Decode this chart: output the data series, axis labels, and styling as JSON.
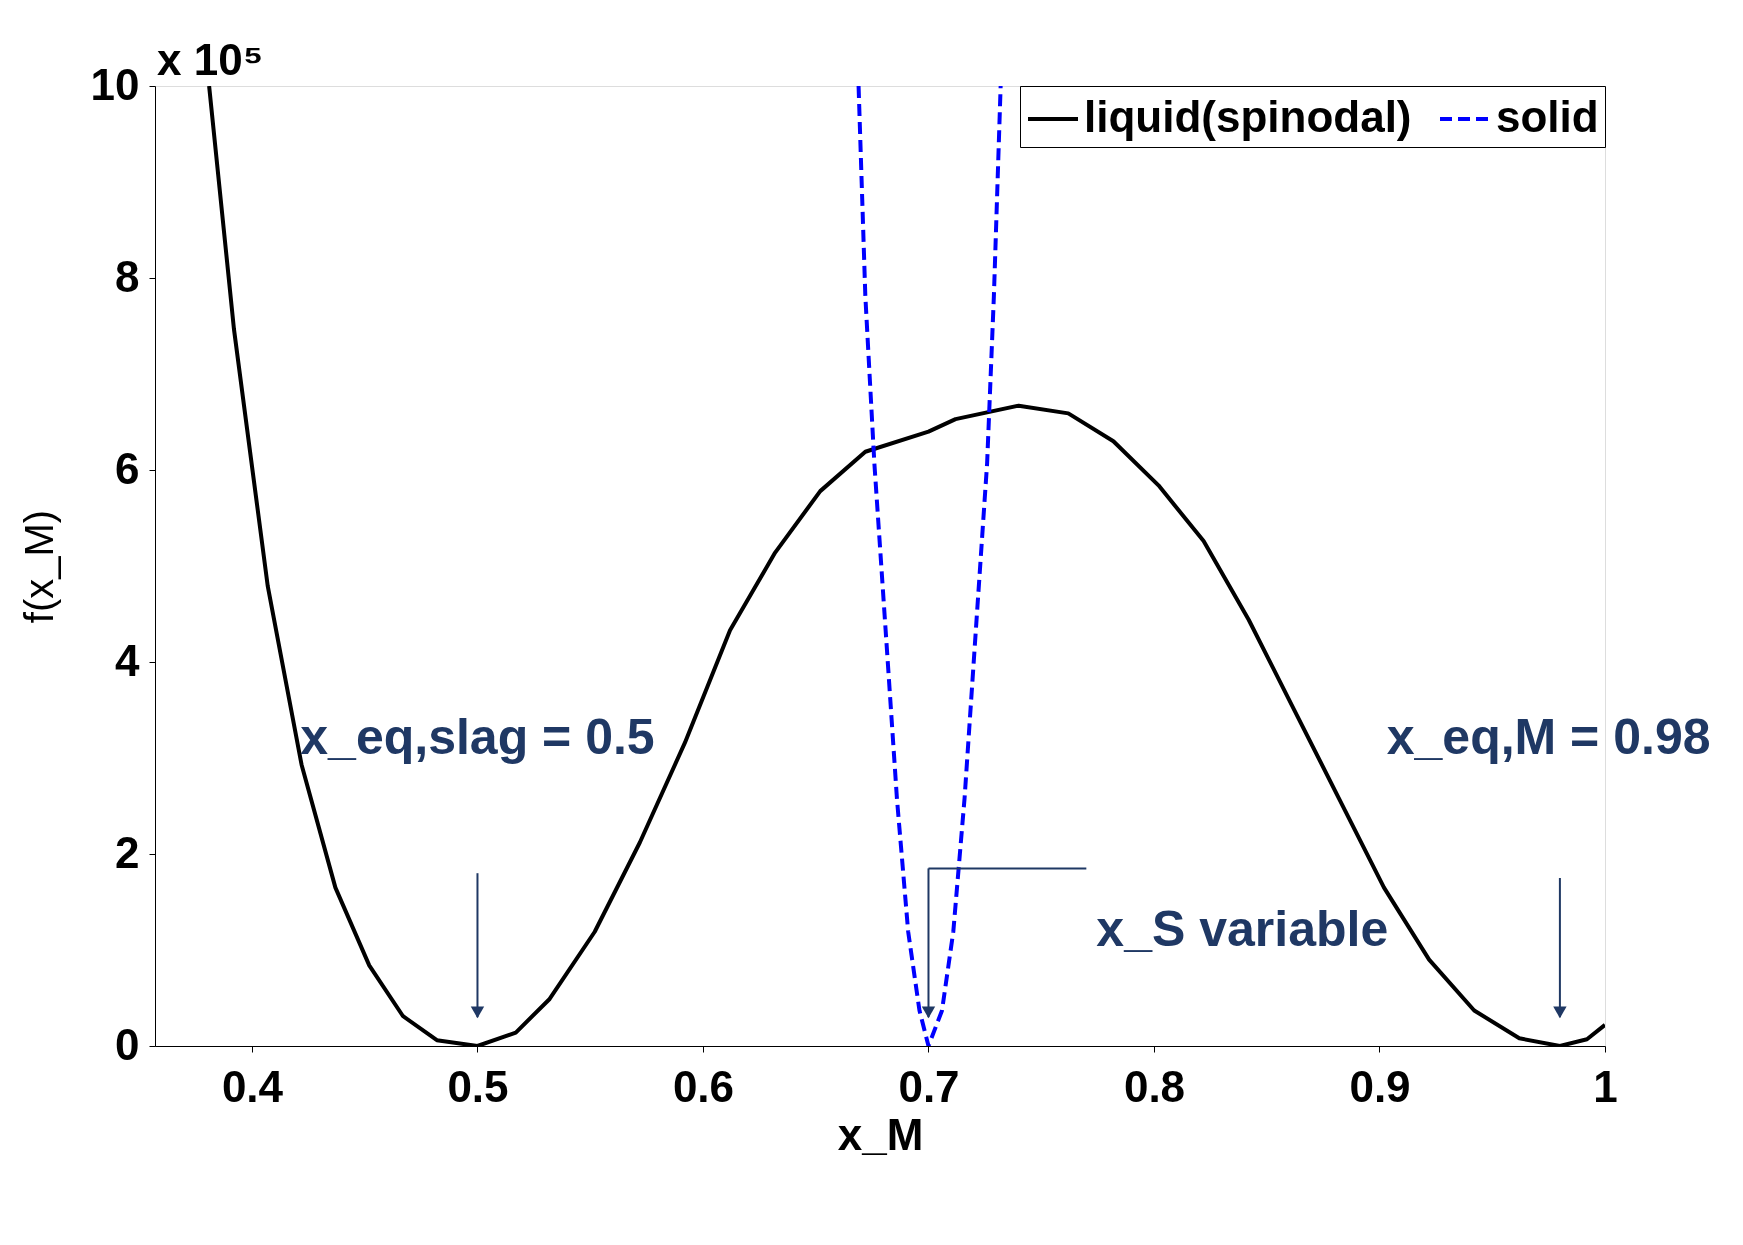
{
  "chart_data": {
    "type": "line",
    "xlabel": "x_M",
    "ylabel": "f(x_M)",
    "xlim": [
      0.357,
      1.0
    ],
    "xticks": [
      0.4,
      0.5,
      0.6,
      0.7,
      0.8,
      0.9,
      1
    ],
    "ylim": [
      0,
      10
    ],
    "yticks": [
      0,
      2,
      4,
      6,
      8,
      10
    ],
    "grid": false,
    "legend": "top right",
    "marker": "none",
    "series": [
      {
        "name": "liquid(spinodal)",
        "color": "#000000",
        "line_style": "solid",
        "x": [
          0.381,
          0.392,
          0.407,
          0.422,
          0.437,
          0.452,
          0.467,
          0.482,
          0.5,
          0.517,
          0.532,
          0.552,
          0.572,
          0.592,
          0.612,
          0.632,
          0.652,
          0.672,
          0.7,
          0.712,
          0.74,
          0.762,
          0.782,
          0.802,
          0.822,
          0.842,
          0.862,
          0.882,
          0.902,
          0.922,
          0.942,
          0.962,
          0.98,
          0.992,
          1.0
        ],
        "values": [
          10,
          7.47,
          4.79,
          2.93,
          1.65,
          0.84,
          0.31,
          0.06,
          0,
          0.14,
          0.49,
          1.19,
          2.12,
          3.16,
          4.33,
          5.14,
          5.78,
          6.19,
          6.4,
          6.53,
          6.67,
          6.59,
          6.3,
          5.84,
          5.26,
          4.44,
          3.51,
          2.58,
          1.65,
          0.9,
          0.37,
          0.08,
          0,
          0.07,
          0.22
        ]
      },
      {
        "name": "solid",
        "color": "#0000ff",
        "line_style": "dashed",
        "x": [
          0.669,
          0.672,
          0.676,
          0.681,
          0.686,
          0.691,
          0.696,
          0.7,
          0.706,
          0.711,
          0.716,
          0.721,
          0.726,
          0.729,
          0.732
        ],
        "values": [
          10,
          7.81,
          6.07,
          4.33,
          2.58,
          1.19,
          0.37,
          0,
          0.37,
          1.19,
          2.58,
          4.33,
          6.07,
          7.81,
          10
        ]
      }
    ],
    "annotations": [
      "x_eq,slag = 0.5",
      "x_S variable",
      "x_eq,M = 0.98",
      "x 10⁵"
    ]
  }
}
